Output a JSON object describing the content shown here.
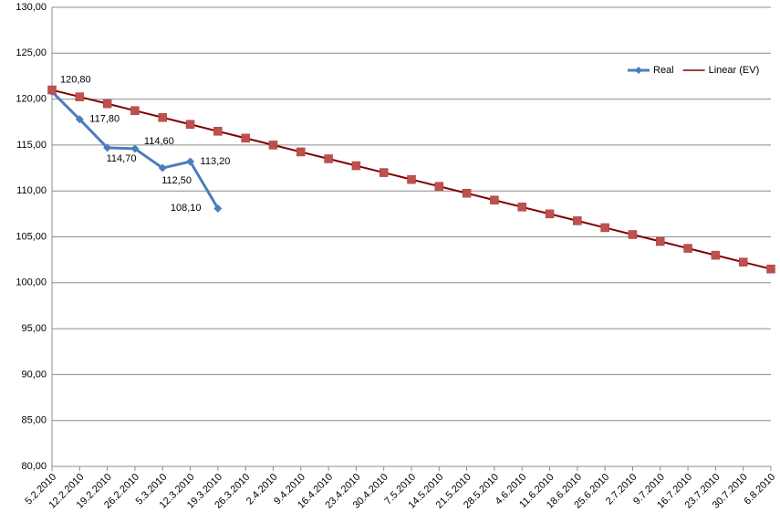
{
  "chart_data": {
    "type": "line",
    "categories": [
      "5.2.2010",
      "12.2.2010",
      "19.2.2010",
      "26.2.2010",
      "5.3.2010",
      "12.3.2010",
      "19.3.2010",
      "26.3.2010",
      "2.4.2010",
      "9.4.2010",
      "16.4.2010",
      "23.4.2010",
      "30.4.2010",
      "7.5.2010",
      "14.5.2010",
      "21.5.2010",
      "28.5.2010",
      "4.6.2010",
      "11.6.2010",
      "18.6.2010",
      "25.6.2010",
      "2.7.2010",
      "9.7.2010",
      "16.7.2010",
      "23.7.2010",
      "30.7.2010",
      "6.8.2010"
    ],
    "series": [
      {
        "name": "Real",
        "color": "#4a7ebb",
        "marker": "diamond",
        "values": [
          120.8,
          117.8,
          114.7,
          114.6,
          112.5,
          113.2,
          108.1,
          null,
          null,
          null,
          null,
          null,
          null,
          null,
          null,
          null,
          null,
          null,
          null,
          null,
          null,
          null,
          null,
          null,
          null,
          null,
          null
        ],
        "value_labels": [
          "120,80",
          "117,80",
          "114,70",
          "114,60",
          "112,50",
          "113,20",
          "108,10",
          null,
          null,
          null,
          null,
          null,
          null,
          null,
          null,
          null,
          null,
          null,
          null,
          null,
          null,
          null,
          null,
          null,
          null,
          null,
          null
        ]
      },
      {
        "name": "Linear (EV)",
        "color": "#7f0000",
        "marker_color": "#c0504d",
        "marker": "square",
        "values": [
          121,
          120.25,
          119.5,
          118.75,
          118,
          117.25,
          116.5,
          115.75,
          115,
          114.25,
          113.5,
          112.75,
          112,
          111.25,
          110.5,
          109.75,
          109,
          108.25,
          107.5,
          106.75,
          106,
          105.25,
          104.5,
          103.75,
          103,
          102.25,
          101.5
        ]
      }
    ],
    "ylim": [
      80,
      130
    ],
    "yticks": [
      {
        "value": 80,
        "label": "80,00"
      },
      {
        "value": 85,
        "label": "85,00"
      },
      {
        "value": 90,
        "label": "90,00"
      },
      {
        "value": 95,
        "label": "95,00"
      },
      {
        "value": 100,
        "label": "100,00"
      },
      {
        "value": 105,
        "label": "105,00"
      },
      {
        "value": 110,
        "label": "110,00"
      },
      {
        "value": 115,
        "label": "115,00"
      },
      {
        "value": 120,
        "label": "120,00"
      },
      {
        "value": 125,
        "label": "125,00"
      },
      {
        "value": 130,
        "label": "130,00"
      }
    ],
    "grid": true,
    "legend": "upper right"
  }
}
